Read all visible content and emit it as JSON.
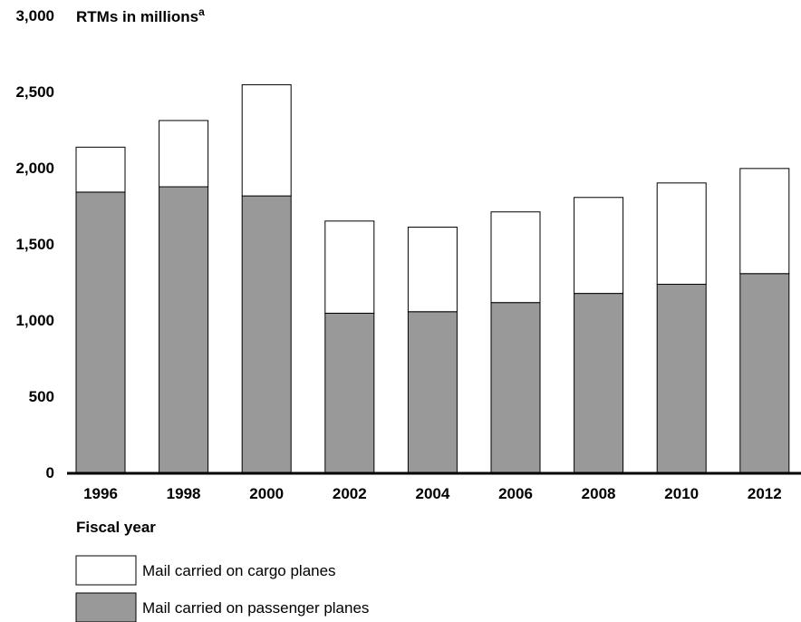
{
  "chart_data": {
    "type": "bar",
    "stacked": true,
    "categories": [
      "1996",
      "1998",
      "2000",
      "2002",
      "2004",
      "2006",
      "2008",
      "2010",
      "2012"
    ],
    "series": [
      {
        "name": "Mail carried on passenger planes",
        "color": "#999999",
        "values": [
          1840,
          1875,
          1815,
          1045,
          1055,
          1115,
          1175,
          1235,
          1305
        ]
      },
      {
        "name": "Mail carried on cargo planes",
        "color": "#ffffff",
        "values": [
          295,
          435,
          730,
          605,
          555,
          595,
          630,
          665,
          690
        ]
      }
    ],
    "ylabel": "RTMs in millions",
    "ylabel_superscript": "a",
    "xlabel": "Fiscal year",
    "ylim": [
      0,
      3000
    ],
    "yticks": [
      0,
      500,
      1000,
      1500,
      2000,
      2500,
      3000
    ],
    "ytick_labels": [
      "0",
      "500",
      "1,000",
      "1,500",
      "2,000",
      "2,500",
      "3,000"
    ],
    "grid": false,
    "legend_position": "bottom-left",
    "legend_order": [
      "Mail carried on cargo planes",
      "Mail carried on passenger planes"
    ]
  }
}
